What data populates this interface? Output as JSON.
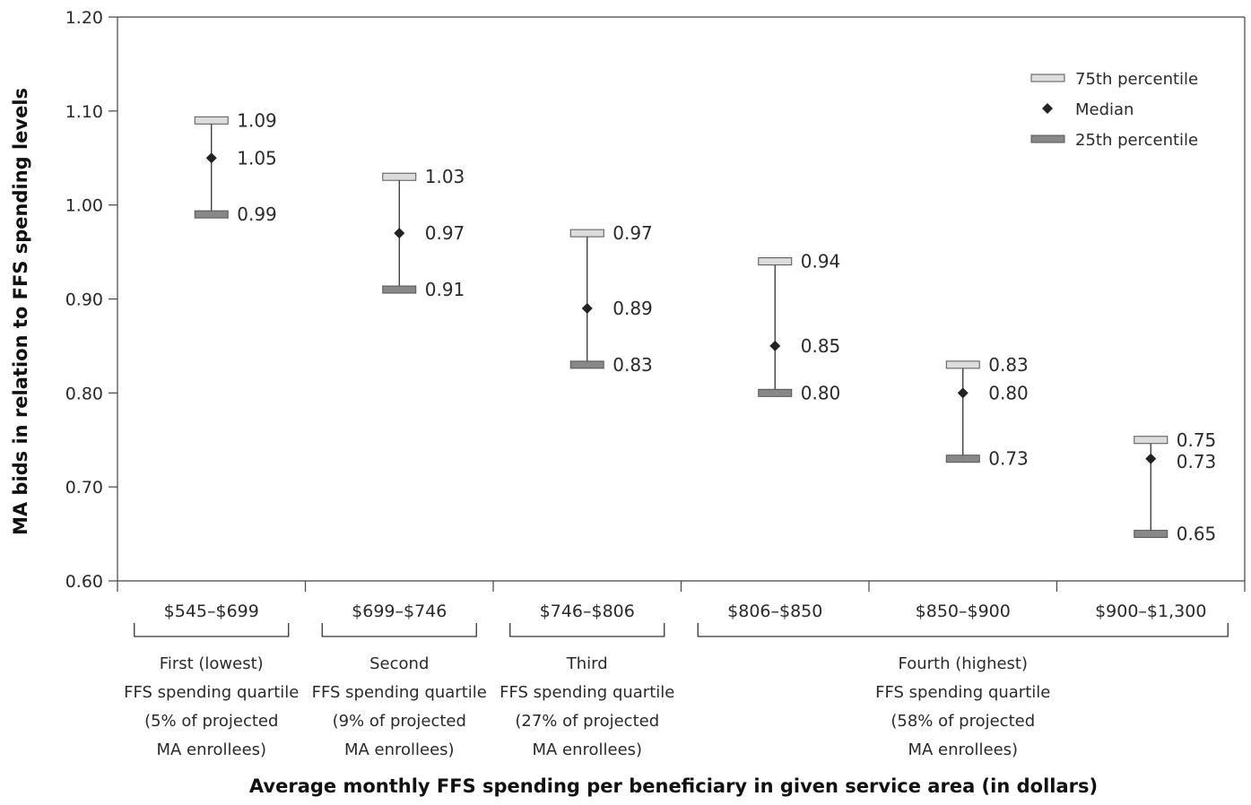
{
  "chart_data": {
    "type": "range",
    "ylabel": "MA bids in relation to FFS spending levels",
    "xlabel": "Average monthly FFS spending per beneficiary in given service area (in dollars)",
    "ylim": [
      0.6,
      1.2
    ],
    "yticks": [
      "0.60",
      "0.70",
      "0.80",
      "0.90",
      "1.00",
      "1.10",
      "1.20"
    ],
    "grid": false,
    "legend_position": "top-right",
    "categories": [
      "$545–$699",
      "$699–$746",
      "$746–$806",
      "$806–$850",
      "$850–$900",
      "$900–$1,300"
    ],
    "series": [
      {
        "name": "75th percentile",
        "values": [
          1.09,
          1.03,
          0.97,
          0.94,
          0.83,
          0.75
        ],
        "color": "#dcdcdc"
      },
      {
        "name": "Median",
        "values": [
          1.05,
          0.97,
          0.89,
          0.85,
          0.8,
          0.73
        ],
        "color": "#222222"
      },
      {
        "name": "25th percentile",
        "values": [
          0.99,
          0.91,
          0.83,
          0.8,
          0.73,
          0.65
        ],
        "color": "#888888"
      }
    ],
    "data_labels": {
      "p75": [
        "1.09",
        "1.03",
        "0.97",
        "0.94",
        "0.83",
        "0.75"
      ],
      "median": [
        "1.05",
        "0.97",
        "0.89",
        "0.85",
        "0.80",
        "0.73"
      ],
      "p25": [
        "0.99",
        "0.91",
        "0.83",
        "0.80",
        "0.73",
        "0.65"
      ]
    },
    "groups": [
      {
        "lines": [
          "First (lowest)",
          "FFS spending quartile",
          "(5% of projected",
          "MA enrollees)"
        ],
        "categories": [
          0
        ]
      },
      {
        "lines": [
          "Second",
          "FFS spending quartile",
          "(9% of projected",
          "MA enrollees)"
        ],
        "categories": [
          1
        ]
      },
      {
        "lines": [
          "Third",
          "FFS spending quartile",
          "(27% of projected",
          "MA enrollees)"
        ],
        "categories": [
          2
        ]
      },
      {
        "lines": [
          "Fourth (highest)",
          "FFS spending quartile",
          "(58% of projected",
          "MA enrollees)"
        ],
        "categories": [
          3,
          4,
          5
        ]
      }
    ]
  }
}
